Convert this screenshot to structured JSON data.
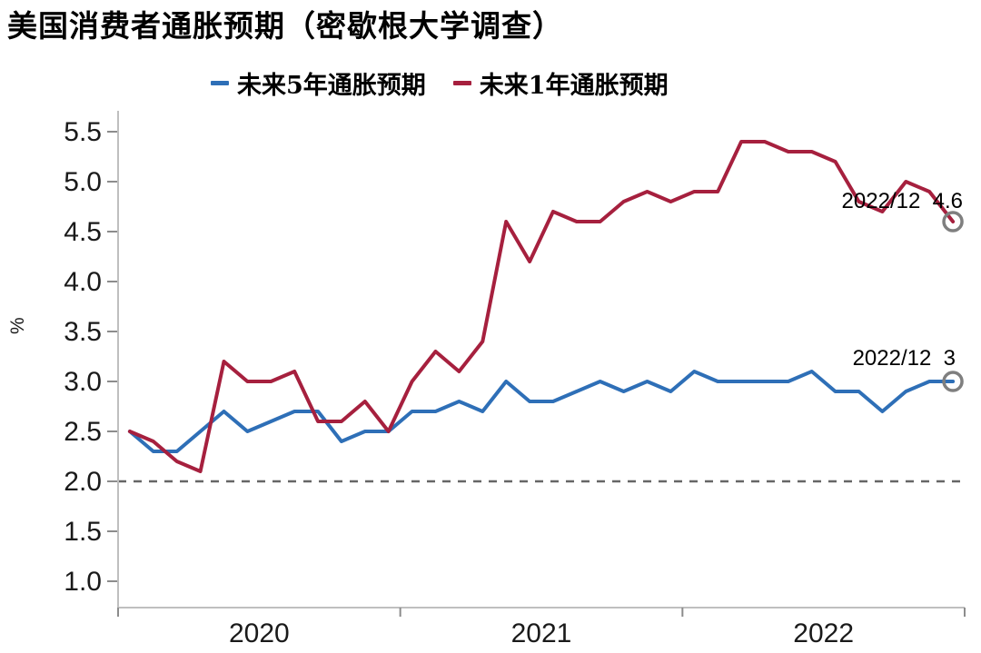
{
  "title": "美国消费者通胀预期（密歇根大学调查）",
  "legend": [
    {
      "label": "未来5年通胀预期",
      "color": "#2E6FB7"
    },
    {
      "label": "未来1年通胀预期",
      "color": "#A6203E"
    }
  ],
  "colors": {
    "axis": "#bfbfbf",
    "tick": "#8c8c8c",
    "tick_label": "#1a1a1a",
    "baseline_dash": "#666666",
    "end_marker": "#7f7f7f"
  },
  "chart_data": {
    "type": "line",
    "title": "美国消费者通胀预期（密歇根大学调查）",
    "xlabel": "",
    "ylabel": "%",
    "ylim": [
      0.75,
      5.7
    ],
    "y_ticks": [
      5.5,
      5.0,
      4.5,
      4.0,
      3.5,
      3.0,
      2.5,
      2.0,
      1.5,
      1.0
    ],
    "x_year_labels": [
      "2020",
      "2021",
      "2022"
    ],
    "grid": false,
    "legend_position": "top",
    "dashed_baseline": 2.0,
    "end_markers": true,
    "x": [
      "2020/01",
      "2020/02",
      "2020/03",
      "2020/04",
      "2020/05",
      "2020/06",
      "2020/07",
      "2020/08",
      "2020/09",
      "2020/10",
      "2020/11",
      "2020/12",
      "2021/01",
      "2021/02",
      "2021/03",
      "2021/04",
      "2021/05",
      "2021/06",
      "2021/07",
      "2021/08",
      "2021/09",
      "2021/10",
      "2021/11",
      "2021/12",
      "2022/01",
      "2022/02",
      "2022/03",
      "2022/04",
      "2022/05",
      "2022/06",
      "2022/07",
      "2022/08",
      "2022/09",
      "2022/10",
      "2022/11",
      "2022/12"
    ],
    "series": [
      {
        "name": "未来5年通胀预期",
        "color": "#2E6FB7",
        "values": [
          2.5,
          2.3,
          2.3,
          2.5,
          2.7,
          2.5,
          2.6,
          2.7,
          2.7,
          2.4,
          2.5,
          2.5,
          2.7,
          2.7,
          2.8,
          2.7,
          3.0,
          2.8,
          2.8,
          2.9,
          3.0,
          2.9,
          3.0,
          2.9,
          3.1,
          3.0,
          3.0,
          3.0,
          3.0,
          3.1,
          2.9,
          2.9,
          2.7,
          2.9,
          3.0,
          3.0
        ]
      },
      {
        "name": "未来1年通胀预期",
        "color": "#A6203E",
        "values": [
          2.5,
          2.4,
          2.2,
          2.1,
          3.2,
          3.0,
          3.0,
          3.1,
          2.6,
          2.6,
          2.8,
          2.5,
          3.0,
          3.3,
          3.1,
          3.4,
          4.6,
          4.2,
          4.7,
          4.6,
          4.6,
          4.8,
          4.9,
          4.8,
          4.9,
          4.9,
          5.4,
          5.4,
          5.3,
          5.3,
          5.2,
          4.8,
          4.7,
          5.0,
          4.9,
          4.6
        ]
      }
    ],
    "annotations": [
      {
        "text": "2022/12  4.6",
        "x": "2022/12",
        "y": 4.6,
        "series": "未来1年通胀预期"
      },
      {
        "text": "2022/12  3",
        "x": "2022/12",
        "y": 3.0,
        "series": "未来5年通胀预期"
      }
    ]
  }
}
